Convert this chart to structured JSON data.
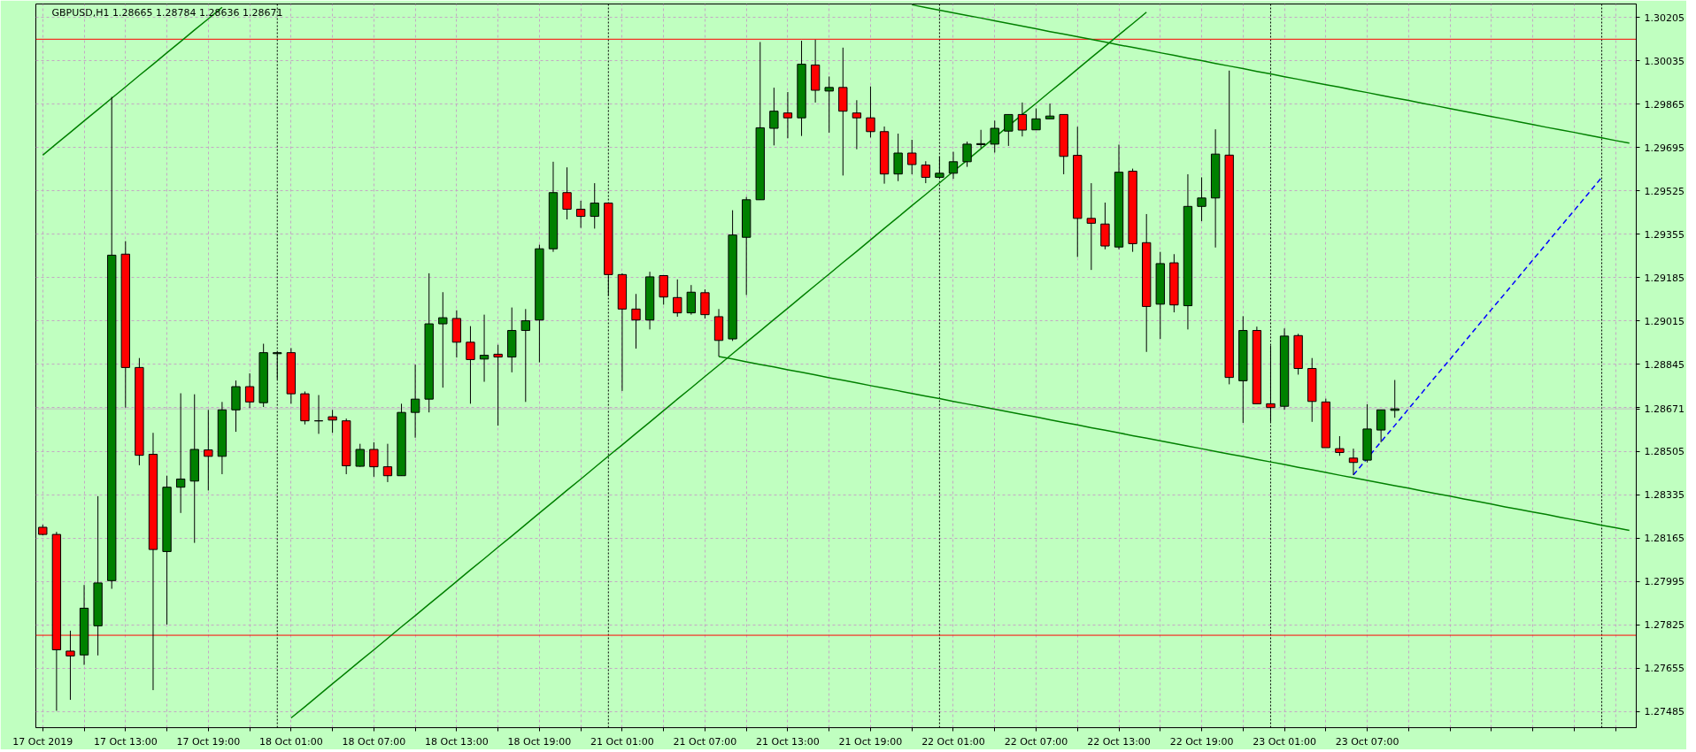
{
  "chart_data": {
    "type": "candlestick",
    "title": "GBPUSD,H1 1.28665 1.28784 1.28636 1.28671",
    "categories": [
      "17 Oct 2019",
      null,
      null,
      null,
      null,
      null,
      "17 Oct 13:00",
      null,
      null,
      null,
      null,
      null,
      "17 Oct 19:00",
      null,
      null,
      null,
      null,
      null,
      "18 Oct 01:00",
      null,
      null,
      null,
      null,
      null,
      "18 Oct 07:00",
      null,
      null,
      null,
      null,
      null,
      "18 Oct 13:00",
      null,
      null,
      null,
      null,
      null,
      "18 Oct 19:00",
      null,
      null,
      null,
      null,
      null,
      "21 Oct 01:00",
      null,
      null,
      null,
      null,
      null,
      "21 Oct 07:00",
      null,
      null,
      null,
      null,
      null,
      "21 Oct 13:00",
      null,
      null,
      null,
      null,
      null,
      "21 Oct 19:00",
      null,
      null,
      null,
      null,
      null,
      "22 Oct 01:00",
      null,
      null,
      null,
      null,
      null,
      "22 Oct 07:00",
      null,
      null,
      null,
      null,
      null,
      "22 Oct 13:00",
      null,
      null,
      null,
      null,
      null,
      "22 Oct 19:00",
      null,
      null,
      null,
      null,
      null,
      "23 Oct 01:00",
      null,
      null,
      null,
      null,
      null,
      "23 Oct 07:00",
      null,
      null,
      null,
      null,
      null,
      null,
      null,
      null,
      null,
      null,
      null,
      null,
      null,
      null,
      null,
      null,
      null,
      null,
      null
    ],
    "ohlc": [
      [
        1.28207,
        1.28217,
        1.28176,
        1.28179
      ],
      [
        1.28179,
        1.28189,
        1.27488,
        1.27727
      ],
      [
        1.27722,
        1.27802,
        1.27531,
        1.27703
      ],
      [
        1.27707,
        1.27981,
        1.27668,
        1.2789
      ],
      [
        1.27821,
        1.28329,
        1.27705,
        1.27989
      ],
      [
        1.27998,
        1.29893,
        1.27966,
        1.29273
      ],
      [
        1.29277,
        1.29328,
        1.28676,
        1.28833
      ],
      [
        1.28833,
        1.2887,
        1.2845,
        1.28489
      ],
      [
        1.28493,
        1.28577,
        1.27569,
        1.2812
      ],
      [
        1.28112,
        1.28409,
        1.27826,
        1.28364
      ],
      [
        1.28364,
        1.28732,
        1.28263,
        1.28396
      ],
      [
        1.28388,
        1.28728,
        1.28146,
        1.28512
      ],
      [
        1.2851,
        1.28667,
        1.28351,
        1.28485
      ],
      [
        1.28485,
        1.28698,
        1.28415,
        1.28667
      ],
      [
        1.28667,
        1.28782,
        1.28581,
        1.28758
      ],
      [
        1.28758,
        1.2881,
        1.28674,
        1.28698
      ],
      [
        1.28695,
        1.28926,
        1.28678,
        1.28891
      ],
      [
        1.28887,
        1.28894,
        1.28786,
        1.28891
      ],
      [
        1.28891,
        1.28909,
        1.28691,
        1.2873
      ],
      [
        1.2873,
        1.28739,
        1.2861,
        1.28624
      ],
      [
        1.28624,
        1.28725,
        1.28573,
        1.28624
      ],
      [
        1.2864,
        1.28667,
        1.28577,
        1.28627
      ],
      [
        1.28624,
        1.28633,
        1.28415,
        1.28448
      ],
      [
        1.28446,
        1.28534,
        1.28444,
        1.28512
      ],
      [
        1.28512,
        1.2854,
        1.28405,
        1.28444
      ],
      [
        1.28444,
        1.28534,
        1.28384,
        1.28409
      ],
      [
        1.28409,
        1.28691,
        1.28409,
        1.28657
      ],
      [
        1.28657,
        1.28844,
        1.28558,
        1.28709
      ],
      [
        1.28709,
        1.29202,
        1.28657,
        1.29004
      ],
      [
        1.29004,
        1.29128,
        1.28754,
        1.29028
      ],
      [
        1.29025,
        1.29057,
        1.28872,
        1.28932
      ],
      [
        1.28932,
        1.28995,
        1.28691,
        1.28864
      ],
      [
        1.28866,
        1.2904,
        1.28777,
        1.28881
      ],
      [
        1.28885,
        1.28922,
        1.28605,
        1.28874
      ],
      [
        1.28874,
        1.29068,
        1.28814,
        1.28978
      ],
      [
        1.28978,
        1.29062,
        1.28698,
        1.29016
      ],
      [
        1.29019,
        1.29314,
        1.28853,
        1.29298
      ],
      [
        1.29298,
        1.29639,
        1.29286,
        1.29518
      ],
      [
        1.29518,
        1.29617,
        1.29413,
        1.29453
      ],
      [
        1.29453,
        1.29486,
        1.2938,
        1.29425
      ],
      [
        1.29425,
        1.29555,
        1.29377,
        1.29477
      ],
      [
        1.29477,
        1.29477,
        1.29113,
        1.29197
      ],
      [
        1.29197,
        1.29202,
        1.28741,
        1.29062
      ],
      [
        1.29062,
        1.29121,
        1.28907,
        1.29019
      ],
      [
        1.29019,
        1.29208,
        1.28982,
        1.29188
      ],
      [
        1.29193,
        1.29193,
        1.29079,
        1.29109
      ],
      [
        1.29107,
        1.29178,
        1.29032,
        1.29047
      ],
      [
        1.29047,
        1.29156,
        1.2904,
        1.29128
      ],
      [
        1.29126,
        1.29139,
        1.29025,
        1.2904
      ],
      [
        1.29032,
        1.29062,
        1.28876,
        1.28939
      ],
      [
        1.28945,
        1.29449,
        1.28937,
        1.29352
      ],
      [
        1.29343,
        1.29501,
        1.29117,
        1.2949
      ],
      [
        1.2949,
        1.30108,
        1.2949,
        1.29772
      ],
      [
        1.2977,
        1.29929,
        1.29703,
        1.29837
      ],
      [
        1.2983,
        1.29912,
        1.29731,
        1.29811
      ],
      [
        1.29811,
        1.30113,
        1.2974,
        1.30021
      ],
      [
        1.30018,
        1.30117,
        1.29871,
        1.29919
      ],
      [
        1.29916,
        1.29973,
        1.29753,
        1.2993
      ],
      [
        1.2993,
        1.30086,
        1.29585,
        1.29837
      ],
      [
        1.2983,
        1.2988,
        1.29688,
        1.29811
      ],
      [
        1.29811,
        1.29934,
        1.29734,
        1.29757
      ],
      [
        1.29757,
        1.29777,
        1.29553,
        1.29591
      ],
      [
        1.29591,
        1.29749,
        1.29563,
        1.29673
      ],
      [
        1.29673,
        1.29725,
        1.2959,
        1.29628
      ],
      [
        1.29626,
        1.29641,
        1.29555,
        1.29578
      ],
      [
        1.29578,
        1.2966,
        1.29576,
        1.29594
      ],
      [
        1.29594,
        1.29678,
        1.29572,
        1.29639
      ],
      [
        1.29639,
        1.29718,
        1.29619,
        1.29708
      ],
      [
        1.29706,
        1.29764,
        1.29692,
        1.2971
      ],
      [
        1.29708,
        1.298,
        1.29675,
        1.2977
      ],
      [
        1.29759,
        1.29824,
        1.29701,
        1.29824
      ],
      [
        1.29824,
        1.29871,
        1.29738,
        1.29763
      ],
      [
        1.29764,
        1.29848,
        1.29763,
        1.29807
      ],
      [
        1.29807,
        1.29867,
        1.29807,
        1.29818
      ],
      [
        1.29824,
        1.29824,
        1.2959,
        1.2966
      ],
      [
        1.29664,
        1.29776,
        1.29266,
        1.29417
      ],
      [
        1.29417,
        1.29555,
        1.29215,
        1.29398
      ],
      [
        1.29395,
        1.29479,
        1.29296,
        1.29309
      ],
      [
        1.29305,
        1.29706,
        1.29296,
        1.29598
      ],
      [
        1.29602,
        1.29612,
        1.29286,
        1.29318
      ],
      [
        1.29322,
        1.29434,
        1.28894,
        1.29072
      ],
      [
        1.29081,
        1.29286,
        1.28945,
        1.2924
      ],
      [
        1.29243,
        1.29277,
        1.29049,
        1.29078
      ],
      [
        1.29075,
        1.2959,
        1.28982,
        1.29464
      ],
      [
        1.29464,
        1.29578,
        1.29406,
        1.29497
      ],
      [
        1.29497,
        1.29766,
        1.29303,
        1.29669
      ],
      [
        1.29665,
        1.29996,
        1.28767,
        1.28794
      ],
      [
        1.28781,
        1.29034,
        1.28616,
        1.28978
      ],
      [
        1.28978,
        1.28993,
        1.28691,
        1.28691
      ],
      [
        1.28691,
        1.28919,
        1.2862,
        1.28676
      ],
      [
        1.28681,
        1.28986,
        1.28667,
        1.28956
      ],
      [
        1.28958,
        1.28965,
        1.28805,
        1.28829
      ],
      [
        1.28829,
        1.2887,
        1.2862,
        1.287
      ],
      [
        1.28698,
        1.28711,
        1.28519,
        1.28519
      ],
      [
        1.28515,
        1.28564,
        1.28487,
        1.285
      ],
      [
        1.28478,
        1.28515,
        1.28412,
        1.28461
      ],
      [
        1.2847,
        1.28689,
        1.28461,
        1.28592
      ],
      [
        1.28588,
        1.28667,
        1.2854,
        1.28667
      ],
      [
        1.28665,
        1.28784,
        1.28636,
        1.28671
      ],
      null,
      null,
      null,
      null,
      null,
      null,
      null,
      null,
      null,
      null,
      null,
      null,
      null,
      null,
      null,
      null,
      null
    ],
    "colors": [
      "#ff0000",
      "#ff0000",
      "#ff0000",
      "#008000",
      "#008000",
      "#008000",
      "#ff0000",
      "#ff0000",
      "#ff0000",
      "#008000",
      "#008000",
      "#008000",
      "#ff0000",
      "#008000",
      "#008000",
      "#ff0000",
      "#008000",
      "#008000",
      "#ff0000",
      "#ff0000",
      "#000000",
      "#ff0000",
      "#ff0000",
      "#008000",
      "#ff0000",
      "#ff0000",
      "#008000",
      "#008000",
      "#008000",
      "#008000",
      "#ff0000",
      "#ff0000",
      "#008000",
      "#ff0000",
      "#008000",
      "#008000",
      "#008000",
      "#008000",
      "#ff0000",
      "#ff0000",
      "#008000",
      "#ff0000",
      "#ff0000",
      "#ff0000",
      "#008000",
      "#ff0000",
      "#ff0000",
      "#008000",
      "#ff0000",
      "#ff0000",
      "#008000",
      "#008000",
      "#008000",
      "#008000",
      "#ff0000",
      "#008000",
      "#ff0000",
      "#008000",
      "#ff0000",
      "#ff0000",
      "#ff0000",
      "#ff0000",
      "#008000",
      "#ff0000",
      "#ff0000",
      "#008000",
      "#008000",
      "#008000",
      "#008000",
      "#008000",
      "#008000",
      "#ff0000",
      "#008000",
      "#008000",
      "#ff0000",
      "#ff0000",
      "#ff0000",
      "#ff0000",
      "#008000",
      "#ff0000",
      "#ff0000",
      "#008000",
      "#ff0000",
      "#008000",
      "#008000",
      "#008000",
      "#ff0000",
      "#008000",
      "#ff0000",
      "#ff0000",
      "#008000",
      "#ff0000",
      "#ff0000",
      "#ff0000",
      "#ff0000",
      "#ff0000",
      "#008000",
      "#008000",
      "#008000",
      null,
      null,
      null,
      null,
      null,
      null,
      null,
      null,
      null,
      null,
      null,
      null,
      null,
      null,
      null,
      null,
      null
    ],
    "series": [
      {
        "type": "line",
        "color": "#008000",
        "values": [
          1.29665,
          1.2971,
          1.29754,
          1.29799,
          1.29843,
          1.29888,
          1.29932,
          1.29977,
          1.30021,
          1.30066,
          1.3011,
          1.30155,
          1.30199,
          1.30244,
          null,
          null,
          null,
          null,
          null,
          null,
          null,
          null,
          null,
          null,
          null,
          null,
          null,
          null,
          null,
          null,
          null,
          null,
          null,
          null,
          null,
          null,
          null,
          null,
          null,
          null,
          null,
          null,
          null,
          null,
          null,
          null,
          null,
          null,
          null,
          null,
          null,
          null,
          null,
          null,
          null,
          null,
          null,
          null,
          null,
          null,
          null,
          null,
          null,
          null,
          null,
          null,
          null,
          null,
          null,
          null,
          null,
          null,
          null,
          null,
          null,
          null,
          null,
          null,
          null,
          null,
          null,
          null,
          null,
          null,
          null,
          null,
          null,
          null,
          null,
          null,
          null,
          null,
          null,
          null,
          null,
          null,
          null,
          null,
          null,
          null,
          null,
          null,
          null,
          null,
          null,
          null,
          null,
          null,
          null,
          null,
          null,
          null,
          null,
          null,
          null,
          null
        ]
      },
      {
        "type": "line",
        "color": "#008000",
        "values": [
          null,
          null,
          null,
          null,
          null,
          null,
          null,
          null,
          null,
          null,
          null,
          null,
          null,
          null,
          null,
          null,
          null,
          null,
          1.2746,
          1.27504,
          1.27549,
          1.27594,
          1.27638,
          1.27683,
          1.27727,
          1.27772,
          1.27817,
          1.27861,
          1.27906,
          1.2795,
          1.27995,
          1.2804,
          1.28084,
          1.28129,
          1.28173,
          1.28218,
          1.28263,
          1.28307,
          1.28352,
          1.28396,
          1.28441,
          1.28486,
          1.2853,
          1.28575,
          1.28619,
          1.28664,
          1.28709,
          1.28753,
          1.28798,
          1.28842,
          1.28887,
          1.28932,
          1.28976,
          1.29021,
          1.29065,
          1.2911,
          1.29155,
          1.29199,
          1.29244,
          1.29288,
          1.29333,
          1.29378,
          1.29422,
          1.29467,
          1.29511,
          1.29556,
          1.29601,
          1.29645,
          1.2969,
          1.29734,
          1.29779,
          1.29824,
          1.29868,
          1.29913,
          1.29957,
          1.30002,
          1.30047,
          1.30091,
          1.30136,
          1.3018,
          1.30225,
          null,
          null,
          null,
          null,
          null,
          null,
          null,
          null,
          null,
          null,
          null,
          null,
          null,
          null,
          null,
          null,
          null,
          null,
          null,
          null,
          null,
          null,
          null,
          null,
          null,
          null,
          null,
          null,
          null,
          null,
          null,
          null,
          null,
          null,
          null
        ]
      },
      {
        "type": "line",
        "color": "#008000",
        "values": [
          null,
          null,
          null,
          null,
          null,
          null,
          null,
          null,
          null,
          null,
          null,
          null,
          null,
          null,
          null,
          null,
          null,
          null,
          null,
          null,
          null,
          null,
          null,
          null,
          null,
          null,
          null,
          null,
          null,
          null,
          null,
          null,
          null,
          null,
          null,
          null,
          null,
          null,
          null,
          null,
          null,
          null,
          null,
          null,
          null,
          null,
          null,
          null,
          null,
          null,
          null,
          null,
          null,
          null,
          null,
          null,
          null,
          null,
          null,
          null,
          null,
          null,
          null,
          1.30254,
          1.30243,
          1.30233,
          1.30222,
          1.30212,
          1.30202,
          1.30191,
          1.30181,
          1.3017,
          1.3016,
          1.30149,
          1.30139,
          1.30129,
          1.30118,
          1.30108,
          1.30097,
          1.30087,
          1.30077,
          1.30066,
          1.30056,
          1.30045,
          1.30035,
          1.30024,
          1.30014,
          1.30004,
          1.29993,
          1.29983,
          1.29972,
          1.29962,
          1.29951,
          1.29941,
          1.29931,
          1.2992,
          1.2991,
          1.29899,
          1.29889,
          1.29879,
          1.29868,
          1.29858,
          1.29847,
          1.29837,
          1.29826,
          1.29816,
          1.29806,
          1.29795,
          1.29785,
          1.29774,
          1.29764,
          1.29754,
          1.29743,
          1.29733,
          1.29722,
          1.29712
        ]
      },
      {
        "type": "line",
        "color": "#008000",
        "values": [
          null,
          null,
          null,
          null,
          null,
          null,
          null,
          null,
          null,
          null,
          null,
          null,
          null,
          null,
          null,
          null,
          null,
          null,
          null,
          null,
          null,
          null,
          null,
          null,
          null,
          null,
          null,
          null,
          null,
          null,
          null,
          null,
          null,
          null,
          null,
          null,
          null,
          null,
          null,
          null,
          null,
          null,
          null,
          null,
          null,
          null,
          null,
          null,
          null,
          1.28876,
          1.28866,
          1.28855,
          1.28845,
          1.28835,
          1.28824,
          1.28814,
          1.28804,
          1.28793,
          1.28783,
          1.28773,
          1.28762,
          1.28752,
          1.28742,
          1.28731,
          1.28721,
          1.28711,
          1.287,
          1.2869,
          1.2868,
          1.2867,
          1.28659,
          1.28649,
          1.28639,
          1.28628,
          1.28618,
          1.28608,
          1.28597,
          1.28587,
          1.28577,
          1.28566,
          1.28556,
          1.28546,
          1.28535,
          1.28525,
          1.28515,
          1.28504,
          1.28494,
          1.28484,
          1.28473,
          1.28463,
          1.28453,
          1.28442,
          1.28432,
          1.28422,
          1.28411,
          1.28401,
          1.28391,
          1.2838,
          1.2837,
          1.2836,
          1.28349,
          1.28339,
          1.28329,
          1.28318,
          1.28308,
          1.28298,
          1.28287,
          1.28277,
          1.28267,
          1.28257,
          1.28246,
          1.28236,
          1.28226,
          1.28215,
          1.28205,
          1.28195
        ]
      },
      {
        "type": "line",
        "color": "#0000ff",
        "line_style": "dashed",
        "values": [
          null,
          null,
          null,
          null,
          null,
          null,
          null,
          null,
          null,
          null,
          null,
          null,
          null,
          null,
          null,
          null,
          null,
          null,
          null,
          null,
          null,
          null,
          null,
          null,
          null,
          null,
          null,
          null,
          null,
          null,
          null,
          null,
          null,
          null,
          null,
          null,
          null,
          null,
          null,
          null,
          null,
          null,
          null,
          null,
          null,
          null,
          null,
          null,
          null,
          null,
          null,
          null,
          null,
          null,
          null,
          null,
          null,
          null,
          null,
          null,
          null,
          null,
          null,
          null,
          null,
          null,
          null,
          null,
          null,
          null,
          null,
          null,
          null,
          null,
          null,
          null,
          null,
          null,
          null,
          null,
          null,
          null,
          null,
          null,
          null,
          null,
          null,
          null,
          null,
          null,
          null,
          null,
          null,
          null,
          null,
          1.28412,
          1.28477,
          1.28542,
          1.28606,
          1.28671,
          1.28736,
          1.28801,
          1.28865,
          1.2893,
          1.28995,
          1.2906,
          1.29124,
          1.29189,
          1.29254,
          1.29319,
          1.29384,
          1.29448,
          1.29513,
          1.29578,
          null,
          null
        ]
      }
    ],
    "ylim": [
      1.27422,
      1.30257
    ],
    "yticks": [
      1.27485,
      1.27655,
      1.27825,
      1.27995,
      1.28165,
      1.28335,
      1.28505,
      {
        "value": 1.28675,
        "label": null
      },
      1.28845,
      1.29015,
      1.29185,
      1.29355,
      1.29525,
      1.29695,
      1.29865,
      1.30035,
      1.30205
    ],
    "grid": true,
    "ref_lines": [
      {
        "axis": "y",
        "value": 1.30119,
        "color": "#ff0000"
      },
      {
        "axis": "y",
        "value": 1.27784,
        "color": "#ff0000"
      },
      {
        "axis": "y",
        "value": 1.28671,
        "label": "1.28671",
        "color": "#c0c0c0"
      }
    ]
  }
}
